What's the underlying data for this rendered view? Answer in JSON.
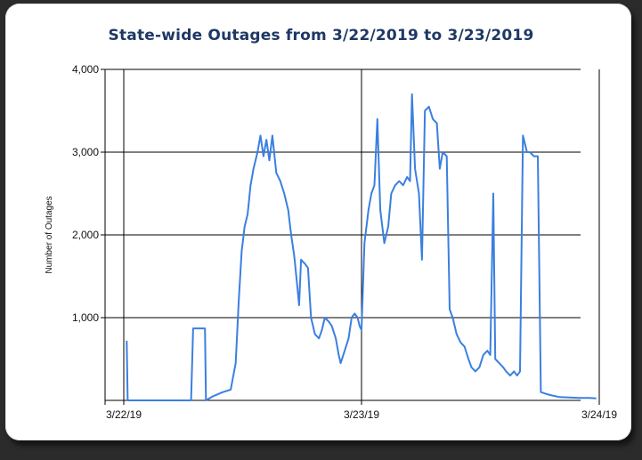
{
  "chart_data": {
    "type": "line",
    "title": "State-wide Outages from 3/22/2019 to 3/23/2019",
    "xlabel": "",
    "ylabel": "Number of Outages",
    "x_ticks": [
      "3/22/19",
      "3/23/19",
      "3/24/19"
    ],
    "x_range": [
      "3/22/19",
      "3/24/19"
    ],
    "x_unit": "hours since 3/22/19 00:00",
    "ylim": [
      0,
      4000
    ],
    "y_ticks": [
      1000,
      2000,
      3000,
      4000
    ],
    "y_tick_labels": [
      "1,000",
      "2,000",
      "3,000",
      "4,000"
    ],
    "grid": true,
    "legend": "none",
    "line_color": "#3b7fe0",
    "series": [
      {
        "values": [
          [
            0.3,
            720
          ],
          [
            0.4,
            0
          ],
          [
            6.8,
            0
          ],
          [
            7.0,
            870
          ],
          [
            8.2,
            870
          ],
          [
            8.3,
            0
          ],
          [
            9.0,
            50
          ],
          [
            10.0,
            100
          ],
          [
            10.8,
            130
          ],
          [
            11.3,
            450
          ],
          [
            11.6,
            1200
          ],
          [
            11.9,
            1800
          ],
          [
            12.2,
            2100
          ],
          [
            12.5,
            2250
          ],
          [
            12.8,
            2600
          ],
          [
            13.1,
            2800
          ],
          [
            13.5,
            3000
          ],
          [
            13.8,
            3200
          ],
          [
            14.1,
            2950
          ],
          [
            14.4,
            3150
          ],
          [
            14.7,
            2900
          ],
          [
            15.0,
            3200
          ],
          [
            15.4,
            2750
          ],
          [
            15.8,
            2650
          ],
          [
            16.2,
            2500
          ],
          [
            16.6,
            2300
          ],
          [
            16.9,
            2000
          ],
          [
            17.2,
            1750
          ],
          [
            17.5,
            1400
          ],
          [
            17.7,
            1150
          ],
          [
            17.9,
            1700
          ],
          [
            18.3,
            1650
          ],
          [
            18.6,
            1600
          ],
          [
            18.9,
            1000
          ],
          [
            19.3,
            800
          ],
          [
            19.7,
            750
          ],
          [
            20.0,
            850
          ],
          [
            20.3,
            1000
          ],
          [
            20.7,
            950
          ],
          [
            21.0,
            900
          ],
          [
            21.4,
            750
          ],
          [
            21.7,
            550
          ],
          [
            21.9,
            450
          ],
          [
            22.3,
            600
          ],
          [
            22.7,
            750
          ],
          [
            23.0,
            1000
          ],
          [
            23.3,
            1050
          ],
          [
            23.6,
            1000
          ],
          [
            23.8,
            900
          ],
          [
            24.0,
            850
          ],
          [
            24.3,
            1900
          ],
          [
            24.7,
            2300
          ],
          [
            25.0,
            2500
          ],
          [
            25.3,
            2600
          ],
          [
            25.6,
            3400
          ],
          [
            25.9,
            2300
          ],
          [
            26.3,
            1900
          ],
          [
            26.7,
            2100
          ],
          [
            27.0,
            2500
          ],
          [
            27.4,
            2600
          ],
          [
            27.8,
            2650
          ],
          [
            28.2,
            2600
          ],
          [
            28.6,
            2700
          ],
          [
            28.9,
            2650
          ],
          [
            29.1,
            3700
          ],
          [
            29.4,
            2800
          ],
          [
            29.8,
            2500
          ],
          [
            30.1,
            1700
          ],
          [
            30.4,
            3500
          ],
          [
            30.8,
            3550
          ],
          [
            31.2,
            3400
          ],
          [
            31.6,
            3350
          ],
          [
            31.9,
            2800
          ],
          [
            32.2,
            3000
          ],
          [
            32.6,
            2950
          ],
          [
            32.9,
            1100
          ],
          [
            33.2,
            1000
          ],
          [
            33.6,
            800
          ],
          [
            34.0,
            700
          ],
          [
            34.4,
            650
          ],
          [
            34.8,
            500
          ],
          [
            35.1,
            400
          ],
          [
            35.5,
            350
          ],
          [
            35.9,
            400
          ],
          [
            36.3,
            550
          ],
          [
            36.7,
            600
          ],
          [
            37.0,
            550
          ],
          [
            37.3,
            2500
          ],
          [
            37.5,
            500
          ],
          [
            37.9,
            450
          ],
          [
            38.3,
            400
          ],
          [
            38.6,
            350
          ],
          [
            39.0,
            300
          ],
          [
            39.4,
            350
          ],
          [
            39.7,
            300
          ],
          [
            40.0,
            350
          ],
          [
            40.3,
            3200
          ],
          [
            40.7,
            3000
          ],
          [
            41.0,
            3000
          ],
          [
            41.4,
            2950
          ],
          [
            41.8,
            2950
          ],
          [
            42.1,
            100
          ],
          [
            42.6,
            80
          ],
          [
            43.2,
            60
          ],
          [
            44.0,
            40
          ],
          [
            45.0,
            35
          ],
          [
            46.0,
            30
          ],
          [
            47.0,
            30
          ],
          [
            47.7,
            25
          ]
        ]
      }
    ]
  }
}
